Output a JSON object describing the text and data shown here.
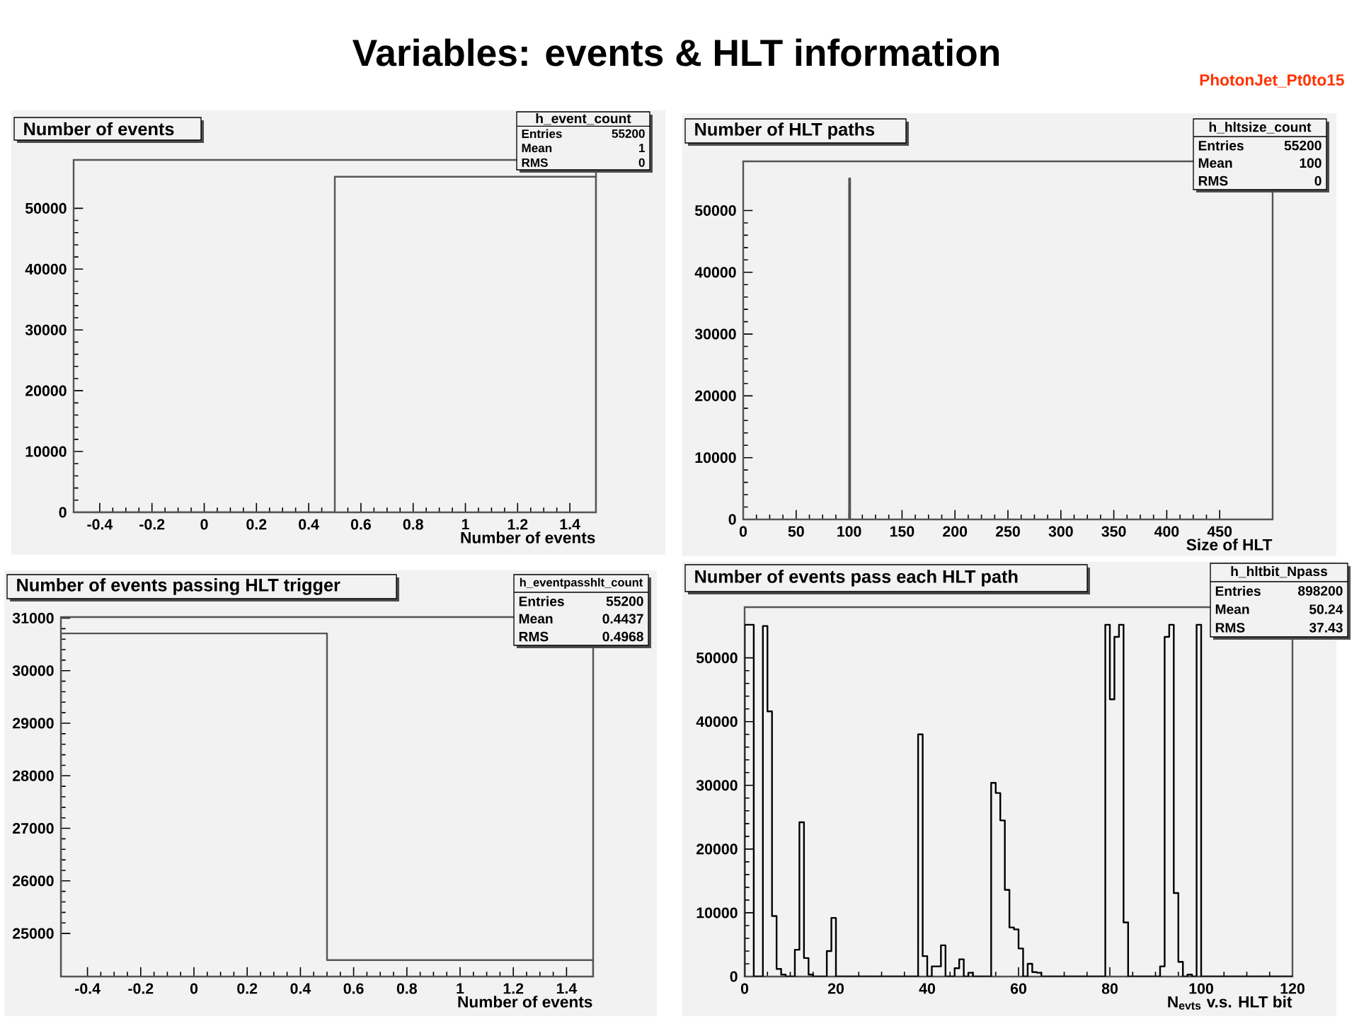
{
  "chart_data": [
    {
      "type": "histogram",
      "title": "Number of events",
      "xlabel": "Number of events",
      "color": "#555555",
      "bins": [
        -0.5,
        0.5,
        1.5
      ],
      "values": [
        0,
        55200
      ],
      "xlim": [
        -0.5,
        1.5
      ],
      "xticks": [
        -0.4,
        -0.2,
        0,
        0.2,
        0.4,
        0.6,
        0.8,
        1,
        1.2,
        1.4
      ],
      "ylim": [
        0,
        57960
      ],
      "yticks": [
        0,
        10000,
        20000,
        30000,
        40000,
        50000
      ],
      "annotations": [
        "h_event_count",
        "Entries",
        "55200",
        "Mean",
        "1",
        "RMS",
        "0",
        "Variables: events & HLT information",
        "PhotonJet_Pt0to15"
      ]
    },
    {
      "type": "histogram",
      "title": "Number of HLT paths",
      "xlabel": "Size of HLT",
      "color": "#555555",
      "bins": [
        100,
        101
      ],
      "values": [
        55200
      ],
      "xlim": [
        0,
        500
      ],
      "xticks": [
        0,
        50,
        100,
        150,
        200,
        250,
        300,
        350,
        400,
        450
      ],
      "ylim": [
        0,
        57960
      ],
      "yticks": [
        0,
        10000,
        20000,
        30000,
        40000,
        50000
      ],
      "annotations": [
        "h_hltsize_count",
        "Entries",
        "55200",
        "Mean",
        "100",
        "RMS",
        "0"
      ]
    },
    {
      "type": "histogram",
      "title": "Number of events passing HLT trigger",
      "xlabel": "Number of events",
      "color": "#555555",
      "bins": [
        -0.5,
        0.5,
        1.5
      ],
      "values": [
        30708,
        24492
      ],
      "xlim": [
        -0.5,
        1.5
      ],
      "xticks": [
        -0.4,
        -0.2,
        0,
        0.2,
        0.4,
        0.6,
        0.8,
        1,
        1.2,
        1.4
      ],
      "ylim": [
        24180,
        31020
      ],
      "yticks": [
        25000,
        26000,
        27000,
        28000,
        29000,
        30000,
        31000
      ],
      "annotations": [
        "h_eventpasshlt_count",
        "Entries",
        "55200",
        "Mean",
        "0.4437",
        "RMS",
        "0.4968"
      ]
    },
    {
      "type": "histogram",
      "title": "Number of events pass each HLT path",
      "xlabel": "N$_{evts}$ v.s. HLT bit",
      "color": "#000000",
      "bins": [
        0,
        1,
        2,
        3,
        4,
        5,
        6,
        7,
        8,
        9,
        10,
        11,
        12,
        13,
        14,
        15,
        16,
        17,
        18,
        19,
        20,
        21,
        22,
        23,
        24,
        25,
        26,
        27,
        28,
        29,
        30,
        31,
        32,
        33,
        34,
        35,
        36,
        37,
        38,
        39,
        40,
        41,
        42,
        43,
        44,
        45,
        46,
        47,
        48,
        49,
        50,
        51,
        52,
        53,
        54,
        55,
        56,
        57,
        58,
        59,
        60,
        61,
        62,
        63,
        64,
        65,
        66,
        67,
        68,
        69,
        70,
        71,
        72,
        73,
        74,
        75,
        76,
        77,
        78,
        79,
        80,
        81,
        82,
        83,
        84,
        85,
        86,
        87,
        88,
        89,
        90,
        91,
        92,
        93,
        94,
        95,
        96,
        97,
        98,
        99,
        100,
        101,
        102,
        103,
        104,
        105,
        106,
        107,
        108,
        109,
        110,
        111,
        112,
        113,
        114,
        115,
        116,
        117,
        118,
        119,
        120
      ],
      "values": [
        55200,
        55200,
        0,
        0,
        55000,
        41600,
        9500,
        1200,
        300,
        0,
        0,
        4200,
        24200,
        2900,
        300,
        0,
        0,
        0,
        4000,
        9200,
        0,
        0,
        0,
        0,
        0,
        0,
        0,
        0,
        0,
        0,
        0,
        0,
        0,
        0,
        0,
        0,
        0,
        0,
        38000,
        3200,
        0,
        1600,
        1600,
        4900,
        0,
        0,
        1300,
        2700,
        0,
        600,
        0,
        0,
        0,
        0,
        30400,
        28800,
        24500,
        13600,
        7700,
        7400,
        4400,
        0,
        2000,
        700,
        600,
        0,
        0,
        0,
        0,
        0,
        0,
        0,
        0,
        0,
        0,
        0,
        0,
        0,
        0,
        55200,
        43500,
        53300,
        55200,
        8500,
        0,
        0,
        0,
        0,
        0,
        0,
        0,
        1600,
        53300,
        55200,
        13100,
        2300,
        0,
        300,
        0,
        55200,
        0,
        0,
        0,
        0,
        0,
        0,
        0,
        0,
        0,
        0,
        0,
        0,
        0,
        0,
        0,
        0,
        0,
        0,
        0,
        0
      ],
      "xlim": [
        0,
        120
      ],
      "xticks": [
        0,
        20,
        40,
        60,
        80,
        100,
        120
      ],
      "ylim": [
        0,
        57960
      ],
      "yticks": [
        0,
        10000,
        20000,
        30000,
        40000,
        50000
      ],
      "annotations": [
        "h_hltbit_Npass",
        "Entries",
        "898200",
        "Mean",
        "50.24",
        "RMS",
        "37.43"
      ]
    }
  ]
}
